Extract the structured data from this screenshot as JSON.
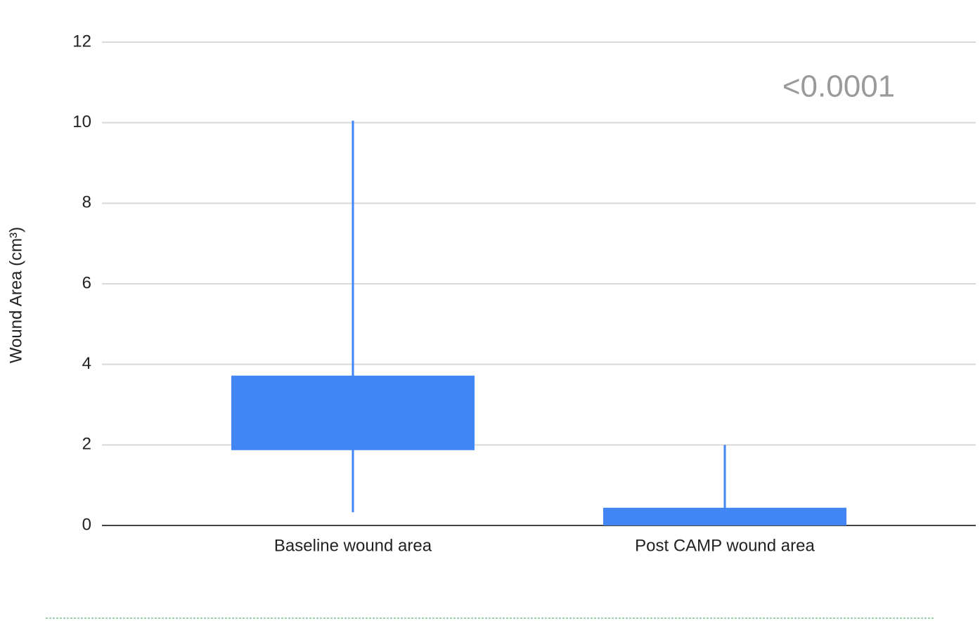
{
  "chart_data": {
    "type": "box",
    "y_label": "Wound Area (cm³)",
    "annotation": "<0.0001",
    "categories": [
      "Baseline wound area",
      "Post CAMP wound area"
    ],
    "boxes": [
      {
        "min": 0.33,
        "q1": 1.87,
        "q3": 3.72,
        "max": 10.05
      },
      {
        "min": 0,
        "q1": 0,
        "q3": 0.44,
        "max": 2.0
      }
    ],
    "color": "#4285f4",
    "ylim": [
      0,
      12
    ],
    "yticks": [
      0,
      2,
      4,
      6,
      8,
      10,
      12
    ],
    "grid": true
  }
}
